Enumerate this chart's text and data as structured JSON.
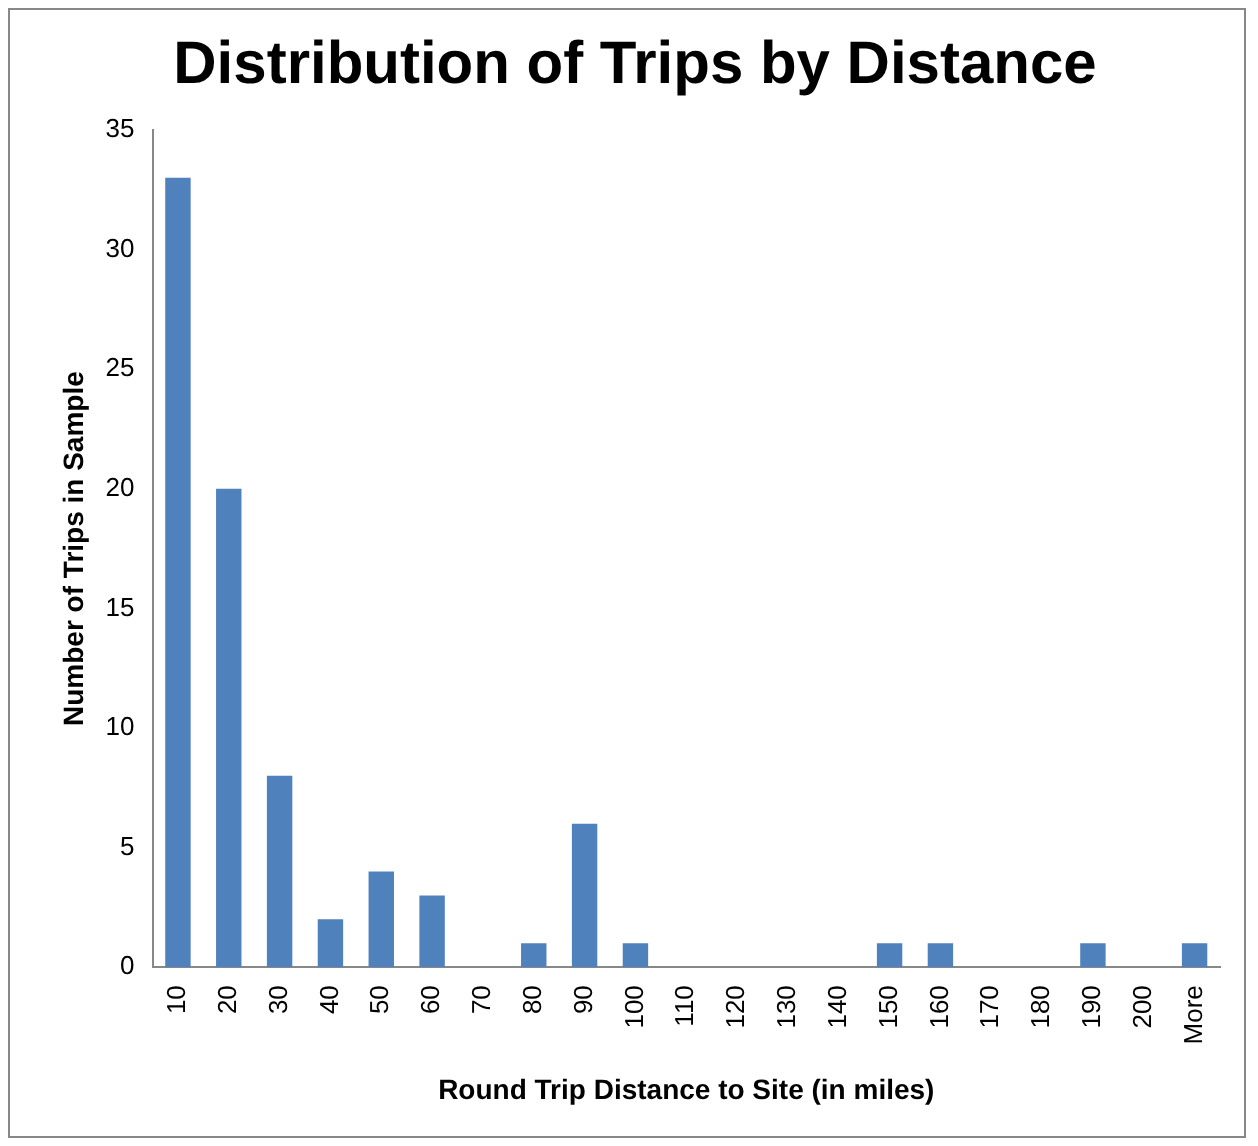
{
  "chart_data": {
    "type": "bar",
    "title": "Distribution of Trips by Distance",
    "xlabel": "Round Trip Distance to Site (in miles)",
    "ylabel": "Number of Trips in Sample",
    "categories": [
      "10",
      "20",
      "30",
      "40",
      "50",
      "60",
      "70",
      "80",
      "90",
      "100",
      "110",
      "120",
      "130",
      "140",
      "150",
      "160",
      "170",
      "180",
      "190",
      "200",
      "More"
    ],
    "values": [
      33,
      20,
      8,
      2,
      4,
      3,
      0,
      1,
      6,
      1,
      0,
      0,
      0,
      0,
      1,
      1,
      0,
      0,
      1,
      0,
      1
    ],
    "color": "#4f81bd",
    "ylim": [
      0,
      35
    ],
    "yticks": [
      0,
      5,
      10,
      15,
      20,
      25,
      30,
      35
    ],
    "grid": false,
    "legend": false
  }
}
